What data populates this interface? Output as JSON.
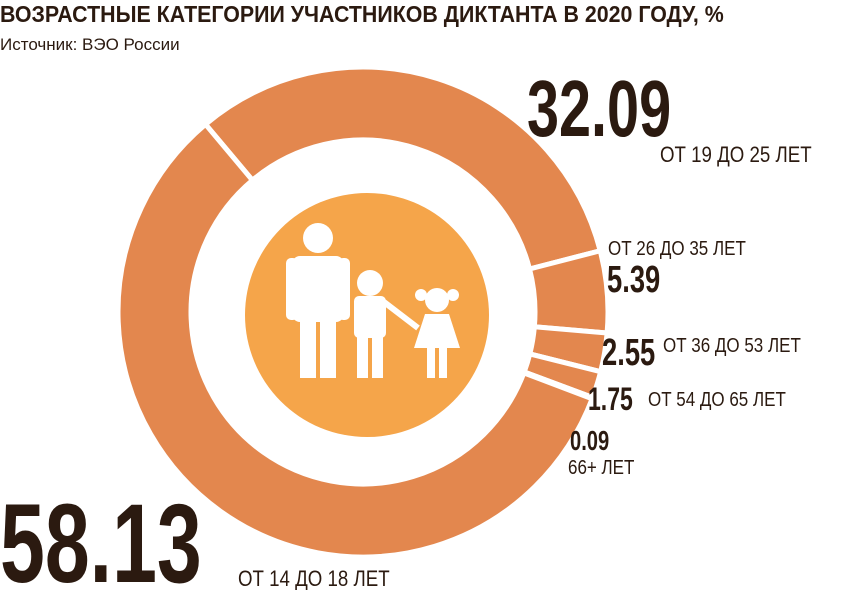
{
  "chart_data": {
    "type": "donut",
    "title": "ВОЗРАСТНЫЕ КАТЕГОРИИ УЧАСТНИКОВ ДИКТАНТА В 2020 ГОДУ, %",
    "subtitle": "Источник: ВЭО России",
    "categories": [
      "ОТ 19 ДО 25 ЛЕТ",
      "ОТ 26 ДО 35 ЛЕТ",
      "ОТ 36 ДО 53 ЛЕТ",
      "ОТ 54 ДО 65 ЛЕТ",
      "66+ ЛЕТ",
      "ОТ 14 ДО 18 ЛЕТ"
    ],
    "values": [
      32.09,
      5.39,
      2.55,
      1.75,
      0.09,
      58.13
    ],
    "color": "#e3874e"
  }
}
